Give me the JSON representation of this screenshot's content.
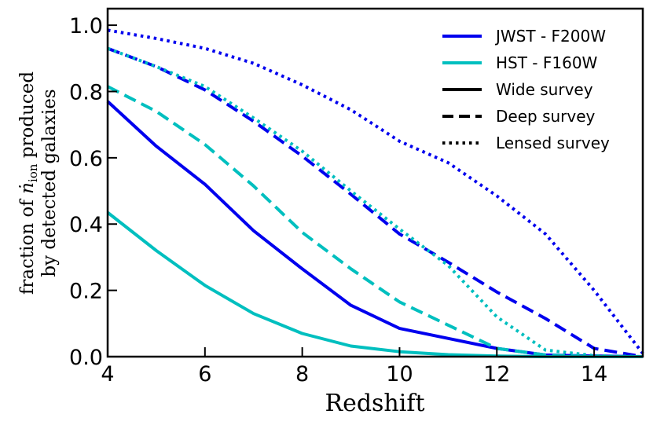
{
  "chart_data": {
    "type": "line",
    "xlabel": "Redshift",
    "ylabel": {
      "line1_prefix": "fraction of ",
      "symbol": "ṅ",
      "subscript": "ion",
      "line1_suffix": " produced",
      "line2": "by detected galaxies"
    },
    "xlim": [
      4,
      15
    ],
    "ylim": [
      0,
      1.05
    ],
    "xticks": [
      4,
      6,
      8,
      10,
      12,
      14
    ],
    "xtick_labels": [
      "4",
      "6",
      "8",
      "10",
      "12",
      "14"
    ],
    "yticks": [
      0,
      0.2,
      0.4,
      0.6,
      0.8,
      1.0
    ],
    "ytick_labels": [
      "0.0",
      "0.2",
      "0.4",
      "0.6",
      "0.8",
      "1.0"
    ],
    "legend_position": "top-right",
    "legend": [
      {
        "label": "JWST - F200W",
        "color": "#0000ee",
        "style": "solid"
      },
      {
        "label": "HST - F160W",
        "color": "#00bfbf",
        "style": "solid"
      },
      {
        "label": "Wide survey",
        "color": "#000000",
        "style": "solid"
      },
      {
        "label": "Deep survey",
        "color": "#000000",
        "style": "dashed"
      },
      {
        "label": "Lensed survey",
        "color": "#000000",
        "style": "dotted"
      }
    ],
    "series": [
      {
        "name": "JWST - F200W, Wide survey",
        "color": "#0000ee",
        "style": "solid",
        "x": [
          4,
          5,
          6,
          7,
          8,
          9,
          10,
          11,
          12,
          13,
          14,
          15
        ],
        "y": [
          0.77,
          0.635,
          0.52,
          0.38,
          0.265,
          0.155,
          0.085,
          0.055,
          0.025,
          0.005,
          0.002,
          0.0
        ]
      },
      {
        "name": "JWST - F200W, Deep survey",
        "color": "#0000ee",
        "style": "dashed",
        "x": [
          4,
          5,
          6,
          7,
          8,
          9,
          10,
          11,
          12,
          13,
          14,
          15
        ],
        "y": [
          0.93,
          0.875,
          0.805,
          0.71,
          0.605,
          0.49,
          0.37,
          0.285,
          0.195,
          0.115,
          0.025,
          0.0
        ]
      },
      {
        "name": "JWST - F200W, Lensed survey",
        "color": "#0000ee",
        "style": "dotted",
        "x": [
          4,
          5,
          6,
          7,
          8,
          9,
          10,
          11,
          12,
          13,
          14,
          15
        ],
        "y": [
          0.985,
          0.96,
          0.93,
          0.885,
          0.82,
          0.745,
          0.65,
          0.585,
          0.485,
          0.37,
          0.2,
          0.01
        ]
      },
      {
        "name": "HST - F160W, Wide survey",
        "color": "#00bfbf",
        "style": "solid",
        "x": [
          4,
          5,
          6,
          7,
          8,
          9,
          10,
          11,
          12,
          13,
          14,
          15
        ],
        "y": [
          0.435,
          0.32,
          0.215,
          0.13,
          0.07,
          0.032,
          0.015,
          0.006,
          0.002,
          0.0,
          0.0,
          0.0
        ]
      },
      {
        "name": "HST - F160W, Deep survey",
        "color": "#00bfbf",
        "style": "dashed",
        "x": [
          4,
          5,
          6,
          7,
          8,
          9,
          10,
          11,
          12,
          13,
          14,
          15
        ],
        "y": [
          0.815,
          0.74,
          0.64,
          0.515,
          0.375,
          0.265,
          0.165,
          0.095,
          0.025,
          0.005,
          0.0,
          0.0
        ]
      },
      {
        "name": "HST - F160W, Lensed survey",
        "color": "#00bfbf",
        "style": "dotted",
        "x": [
          4,
          5,
          6,
          7,
          8,
          9,
          10,
          11,
          12,
          13,
          14,
          15
        ],
        "y": [
          0.93,
          0.875,
          0.815,
          0.72,
          0.62,
          0.5,
          0.385,
          0.275,
          0.12,
          0.02,
          0.003,
          0.0
        ]
      }
    ]
  }
}
